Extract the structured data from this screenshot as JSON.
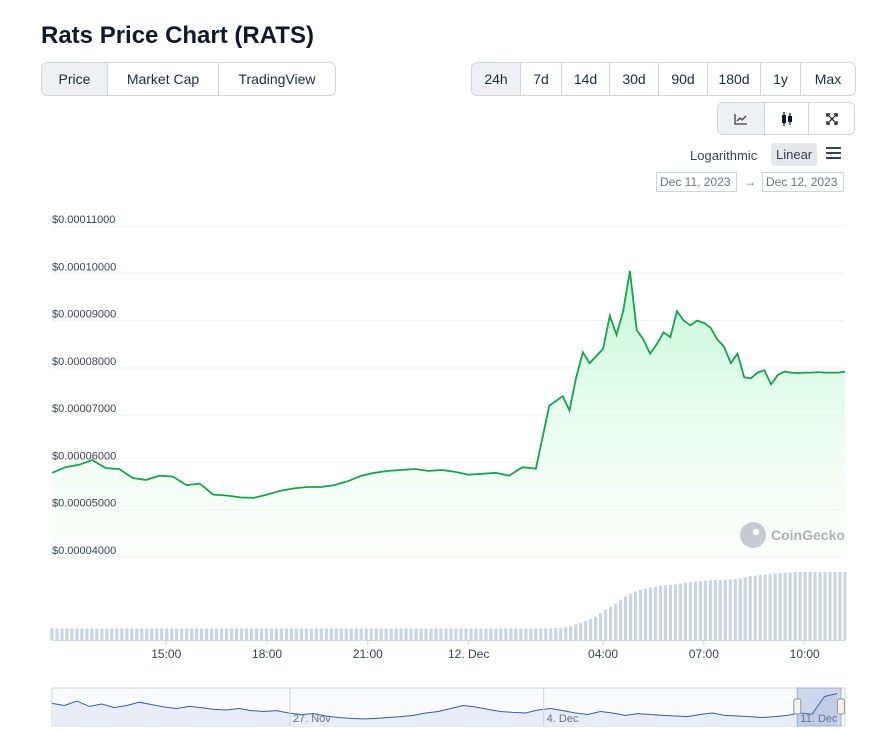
{
  "title": "Rats Price Chart (RATS)",
  "chart_type_tabs": [
    {
      "label": "Price",
      "active": true
    },
    {
      "label": "Market Cap",
      "active": false
    },
    {
      "label": "TradingView",
      "active": false
    }
  ],
  "range_tabs": [
    {
      "label": "24h",
      "active": true
    },
    {
      "label": "7d",
      "active": false
    },
    {
      "label": "14d",
      "active": false
    },
    {
      "label": "30d",
      "active": false
    },
    {
      "label": "90d",
      "active": false
    },
    {
      "label": "180d",
      "active": false
    },
    {
      "label": "1y",
      "active": false
    },
    {
      "label": "Max",
      "active": false
    }
  ],
  "view_tools": [
    "line-chart-icon",
    "candlestick-icon",
    "fullscreen-icon"
  ],
  "scale": {
    "logarithmic": "Logarithmic",
    "linear": "Linear",
    "selected": "Linear"
  },
  "date_range": {
    "from": "Dec 11, 2023",
    "arrow": "→",
    "to": "Dec 12, 2023"
  },
  "watermark": "CoinGecko",
  "colors": {
    "line": "#16a34a",
    "fill": "#bbf7d0",
    "volume": "#cbd5e1",
    "navigator": "#3b5ba9"
  },
  "chart_data": {
    "type": "area",
    "ylim": [
      4e-05,
      0.00011
    ],
    "y_ticks": [
      "$0.00011000",
      "$0.00010000",
      "$0.00009000",
      "$0.00008000",
      "$0.00007000",
      "$0.00006000",
      "$0.00005000",
      "$0.00004000"
    ],
    "y_tick_values": [
      0.00011,
      0.0001,
      9e-05,
      8e-05,
      7e-05,
      6e-05,
      5e-05,
      4e-05
    ],
    "x_range": [
      11.6,
      35.2
    ],
    "x_ticks": [
      {
        "label": "15:00",
        "hour": 15
      },
      {
        "label": "18:00",
        "hour": 18
      },
      {
        "label": "21:00",
        "hour": 21
      },
      {
        "label": "12. Dec",
        "hour": 24
      },
      {
        "label": "04:00",
        "hour": 28
      },
      {
        "label": "07:00",
        "hour": 31
      },
      {
        "label": "10:00",
        "hour": 34
      }
    ],
    "x": [
      11.6,
      12.0,
      12.4,
      12.8,
      13.2,
      13.6,
      14.0,
      14.4,
      14.8,
      15.2,
      15.6,
      16.0,
      16.4,
      16.8,
      17.2,
      17.6,
      18.0,
      18.4,
      18.8,
      19.2,
      19.6,
      20.0,
      20.4,
      20.8,
      21.2,
      21.6,
      22.0,
      22.4,
      22.8,
      23.2,
      23.6,
      24.0,
      24.4,
      24.8,
      25.2,
      25.6,
      26.0,
      26.4,
      26.8,
      27.0,
      27.2,
      27.4,
      27.6,
      27.8,
      28.0,
      28.2,
      28.4,
      28.6,
      28.8,
      29.0,
      29.2,
      29.4,
      29.6,
      29.8,
      30.0,
      30.2,
      30.4,
      30.6,
      30.8,
      31.0,
      31.2,
      31.4,
      31.6,
      31.8,
      32.0,
      32.2,
      32.4,
      32.6,
      32.8,
      33.0,
      33.2,
      33.4,
      33.6,
      33.8,
      34.0,
      34.2,
      34.4,
      34.6,
      34.8,
      35.0,
      35.2
    ],
    "values": [
      5.78e-05,
      5.9e-05,
      5.95e-05,
      6.05e-05,
      5.88e-05,
      5.86e-05,
      5.67e-05,
      5.63e-05,
      5.72e-05,
      5.7e-05,
      5.52e-05,
      5.55e-05,
      5.32e-05,
      5.3e-05,
      5.26e-05,
      5.25e-05,
      5.32e-05,
      5.4e-05,
      5.45e-05,
      5.48e-05,
      5.48e-05,
      5.52e-05,
      5.6e-05,
      5.72e-05,
      5.78e-05,
      5.82e-05,
      5.84e-05,
      5.86e-05,
      5.82e-05,
      5.84e-05,
      5.8e-05,
      5.74e-05,
      5.76e-05,
      5.78e-05,
      5.72e-05,
      5.9e-05,
      5.87e-05,
      7.2e-05,
      7.4e-05,
      7.1e-05,
      7.8e-05,
      8.33e-05,
      8.1e-05,
      8.25e-05,
      8.4e-05,
      9.1e-05,
      8.7e-05,
      9.2e-05,
      0.0001005,
      8.8e-05,
      8.6e-05,
      8.3e-05,
      8.5e-05,
      8.75e-05,
      8.65e-05,
      9.2e-05,
      9e-05,
      8.9e-05,
      9e-05,
      8.95e-05,
      8.85e-05,
      8.6e-05,
      8.45e-05,
      8.1e-05,
      8.3e-05,
      7.8e-05,
      7.78e-05,
      7.9e-05,
      7.95e-05,
      7.65e-05,
      7.85e-05,
      7.92e-05,
      7.9e-05,
      7.89e-05,
      7.9e-05,
      7.9e-05,
      7.91e-05,
      7.9e-05,
      7.9e-05,
      7.9e-05,
      7.92e-05
    ],
    "volume_max": 1.0,
    "volume": [
      0.17,
      0.17,
      0.17,
      0.17,
      0.17,
      0.17,
      0.17,
      0.17,
      0.17,
      0.17,
      0.17,
      0.17,
      0.17,
      0.17,
      0.17,
      0.17,
      0.17,
      0.17,
      0.17,
      0.17,
      0.17,
      0.17,
      0.17,
      0.17,
      0.17,
      0.17,
      0.17,
      0.17,
      0.17,
      0.17,
      0.17,
      0.17,
      0.17,
      0.17,
      0.17,
      0.17,
      0.17,
      0.17,
      0.18,
      0.2,
      0.23,
      0.26,
      0.3,
      0.35,
      0.42,
      0.48,
      0.55,
      0.62,
      0.68,
      0.72,
      0.75,
      0.77,
      0.79,
      0.8,
      0.81,
      0.82,
      0.84,
      0.85,
      0.86,
      0.87,
      0.88,
      0.88,
      0.89,
      0.89,
      0.9,
      0.92,
      0.94,
      0.95,
      0.96,
      0.97,
      0.98,
      0.99,
      0.99,
      1.0,
      1.0,
      1.0,
      1.0,
      1.0,
      1.0,
      1.0,
      1.0
    ],
    "navigator_labels": [
      {
        "label": "27. Nov",
        "pos": 0.3
      },
      {
        "label": "4. Dec",
        "pos": 0.62
      },
      {
        "label": "11. Dec",
        "pos": 0.94
      }
    ],
    "navigator_series": [
      0.62,
      0.55,
      0.7,
      0.52,
      0.6,
      0.48,
      0.55,
      0.66,
      0.58,
      0.5,
      0.45,
      0.52,
      0.48,
      0.42,
      0.4,
      0.45,
      0.38,
      0.35,
      0.38,
      0.3,
      0.25,
      0.28,
      0.2,
      0.15,
      0.12,
      0.1,
      0.12,
      0.15,
      0.18,
      0.22,
      0.3,
      0.35,
      0.45,
      0.55,
      0.5,
      0.42,
      0.35,
      0.32,
      0.3,
      0.4,
      0.45,
      0.38,
      0.3,
      0.25,
      0.35,
      0.3,
      0.22,
      0.28,
      0.25,
      0.22,
      0.2,
      0.18,
      0.25,
      0.3,
      0.22,
      0.2,
      0.18,
      0.15,
      0.18,
      0.22,
      0.3,
      0.26,
      0.85,
      0.95
    ],
    "navigator_window": [
      0.965,
      1.0
    ]
  }
}
